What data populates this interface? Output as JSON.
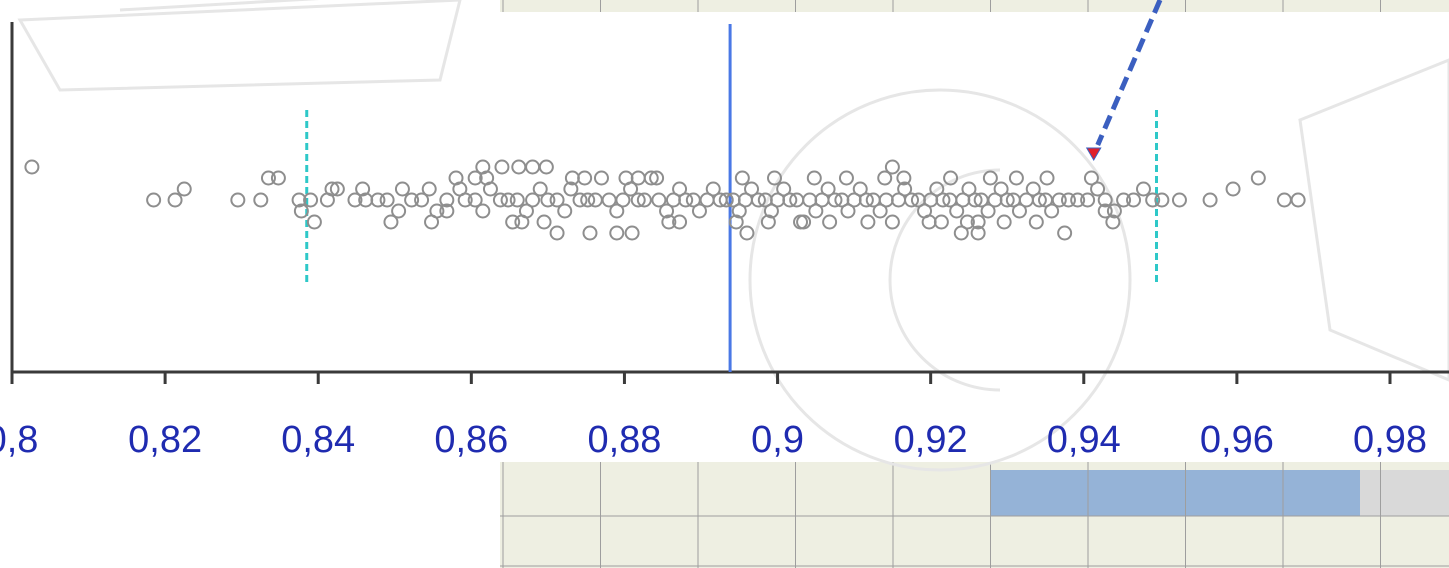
{
  "chart_data": {
    "type": "scatter",
    "title": "",
    "xlabel": "",
    "ylabel": "",
    "xlim": [
      0.8,
      0.98
    ],
    "x_ticks": [
      0.8,
      0.82,
      0.84,
      0.86,
      0.88,
      0.9,
      0.92,
      0.94,
      0.96,
      0.98
    ],
    "x_tick_labels": [
      "0,8",
      "0,82",
      "0,84",
      "0,86",
      "0,88",
      "0,9",
      "0,92",
      "0,94",
      "0,96",
      "0,98"
    ],
    "grid": false,
    "reference_lines": [
      {
        "x": 0.8385,
        "style": "dashed",
        "color": "#2ec8c8"
      },
      {
        "x": 0.8938,
        "style": "solid",
        "color": "#4a78e6"
      },
      {
        "x": 0.9495,
        "style": "dashed",
        "color": "#2ec8c8"
      }
    ],
    "highlight_point": {
      "x": 0.9413,
      "marker": "triangle",
      "color": "#e0202a"
    },
    "points": [
      [
        0.8026,
        -3
      ],
      [
        0.8185,
        0
      ],
      [
        0.8213,
        0
      ],
      [
        0.8225,
        -1
      ],
      [
        0.8295,
        0
      ],
      [
        0.8325,
        0
      ],
      [
        0.8375,
        0
      ],
      [
        0.839,
        0
      ],
      [
        0.8378,
        1
      ],
      [
        0.8395,
        2
      ],
      [
        0.8412,
        0
      ],
      [
        0.8425,
        -1
      ],
      [
        0.8448,
        0
      ],
      [
        0.8462,
        0
      ],
      [
        0.8478,
        0
      ],
      [
        0.849,
        0
      ],
      [
        0.8505,
        1
      ],
      [
        0.851,
        -1
      ],
      [
        0.8522,
        0
      ],
      [
        0.8535,
        0
      ],
      [
        0.8545,
        -1
      ],
      [
        0.8555,
        1
      ],
      [
        0.8568,
        0
      ],
      [
        0.858,
        -2
      ],
      [
        0.8592,
        0
      ],
      [
        0.8605,
        0
      ],
      [
        0.8615,
        1
      ],
      [
        0.8625,
        -1
      ],
      [
        0.8638,
        0
      ],
      [
        0.8648,
        0
      ],
      [
        0.8335,
        -2
      ],
      [
        0.8348,
        -2
      ],
      [
        0.8495,
        2
      ],
      [
        0.8548,
        2
      ],
      [
        0.8418,
        -1
      ],
      [
        0.8458,
        -1
      ],
      [
        0.866,
        0
      ],
      [
        0.8672,
        1
      ],
      [
        0.868,
        0
      ],
      [
        0.869,
        -1
      ],
      [
        0.87,
        0
      ],
      [
        0.8712,
        0
      ],
      [
        0.8722,
        1
      ],
      [
        0.873,
        -1
      ],
      [
        0.8742,
        0
      ],
      [
        0.8752,
        0
      ],
      [
        0.8762,
        0
      ],
      [
        0.877,
        -2
      ],
      [
        0.878,
        0
      ],
      [
        0.879,
        1
      ],
      [
        0.8798,
        0
      ],
      [
        0.8808,
        -1
      ],
      [
        0.8818,
        0
      ],
      [
        0.8826,
        0
      ],
      [
        0.8835,
        -2
      ],
      [
        0.8845,
        0
      ],
      [
        0.8855,
        1
      ],
      [
        0.8864,
        0
      ],
      [
        0.8872,
        -1
      ],
      [
        0.888,
        0
      ],
      [
        0.889,
        0
      ],
      [
        0.8898,
        1
      ],
      [
        0.8908,
        0
      ],
      [
        0.8916,
        -1
      ],
      [
        0.8925,
        0
      ],
      [
        0.8933,
        0
      ],
      [
        0.8654,
        2
      ],
      [
        0.8666,
        2
      ],
      [
        0.8695,
        2
      ],
      [
        0.8732,
        -2
      ],
      [
        0.8748,
        -2
      ],
      [
        0.8802,
        -2
      ],
      [
        0.8818,
        -2
      ],
      [
        0.8842,
        -2
      ],
      [
        0.8858,
        2
      ],
      [
        0.8872,
        2
      ],
      [
        0.862,
        -2
      ],
      [
        0.8605,
        -2
      ],
      [
        0.8585,
        -1
      ],
      [
        0.8568,
        1
      ],
      [
        0.8942,
        0
      ],
      [
        0.895,
        1
      ],
      [
        0.8958,
        0
      ],
      [
        0.8966,
        -1
      ],
      [
        0.8975,
        0
      ],
      [
        0.8984,
        0
      ],
      [
        0.8992,
        1
      ],
      [
        0.9,
        0
      ],
      [
        0.9008,
        -1
      ],
      [
        0.9016,
        0
      ],
      [
        0.9025,
        0
      ],
      [
        0.9034,
        2
      ],
      [
        0.9042,
        0
      ],
      [
        0.905,
        1
      ],
      [
        0.9058,
        0
      ],
      [
        0.9066,
        -1
      ],
      [
        0.9075,
        0
      ],
      [
        0.9084,
        0
      ],
      [
        0.9092,
        1
      ],
      [
        0.91,
        0
      ],
      [
        0.9108,
        -1
      ],
      [
        0.9116,
        0
      ],
      [
        0.9125,
        0
      ],
      [
        0.9134,
        1
      ],
      [
        0.9142,
        0
      ],
      [
        0.915,
        2
      ],
      [
        0.9158,
        0
      ],
      [
        0.9166,
        -1
      ],
      [
        0.9175,
        0
      ],
      [
        0.9184,
        0
      ],
      [
        0.8946,
        2
      ],
      [
        0.8954,
        -2
      ],
      [
        0.896,
        3
      ],
      [
        0.8988,
        2
      ],
      [
        0.8996,
        -2
      ],
      [
        0.903,
        2
      ],
      [
        0.9048,
        -2
      ],
      [
        0.9068,
        2
      ],
      [
        0.909,
        -2
      ],
      [
        0.9118,
        2
      ],
      [
        0.9192,
        1
      ],
      [
        0.92,
        0
      ],
      [
        0.9208,
        -1
      ],
      [
        0.9216,
        0
      ],
      [
        0.9225,
        0
      ],
      [
        0.9234,
        1
      ],
      [
        0.9242,
        0
      ],
      [
        0.925,
        -1
      ],
      [
        0.9258,
        0
      ],
      [
        0.9266,
        0
      ],
      [
        0.9275,
        1
      ],
      [
        0.9284,
        0
      ],
      [
        0.9292,
        -1
      ],
      [
        0.93,
        0
      ],
      [
        0.9308,
        0
      ],
      [
        0.9316,
        1
      ],
      [
        0.9325,
        0
      ],
      [
        0.9334,
        -1
      ],
      [
        0.9342,
        0
      ],
      [
        0.935,
        0
      ],
      [
        0.9358,
        1
      ],
      [
        0.9368,
        0
      ],
      [
        0.938,
        0
      ],
      [
        0.9392,
        0
      ],
      [
        0.9405,
        0
      ],
      [
        0.9418,
        -1
      ],
      [
        0.9428,
        0
      ],
      [
        0.944,
        1
      ],
      [
        0.9452,
        0
      ],
      [
        0.9465,
        0
      ],
      [
        0.9478,
        -1
      ],
      [
        0.949,
        0
      ],
      [
        0.9502,
        0
      ],
      [
        0.9525,
        0
      ],
      [
        0.9565,
        0
      ],
      [
        0.9595,
        -1
      ],
      [
        0.9628,
        -2
      ],
      [
        0.9662,
        0
      ],
      [
        0.968,
        0
      ],
      [
        0.9198,
        2
      ],
      [
        0.9214,
        2
      ],
      [
        0.9226,
        -2
      ],
      [
        0.9248,
        2
      ],
      [
        0.9262,
        2
      ],
      [
        0.9278,
        -2
      ],
      [
        0.9296,
        2
      ],
      [
        0.9312,
        -2
      ],
      [
        0.9338,
        2
      ],
      [
        0.9352,
        -2
      ],
      [
        0.9375,
        3
      ],
      [
        0.941,
        -2
      ],
      [
        0.9428,
        1
      ],
      [
        0.9438,
        2
      ],
      [
        0.924,
        3
      ],
      [
        0.9262,
        3
      ],
      [
        0.914,
        -2
      ],
      [
        0.915,
        -3
      ],
      [
        0.9165,
        -2
      ],
      [
        0.879,
        3
      ],
      [
        0.881,
        3
      ],
      [
        0.8755,
        3
      ],
      [
        0.8712,
        3
      ],
      [
        0.8698,
        -3
      ],
      [
        0.868,
        -3
      ],
      [
        0.8662,
        -3
      ],
      [
        0.864,
        -3
      ],
      [
        0.8615,
        -3
      ]
    ]
  }
}
